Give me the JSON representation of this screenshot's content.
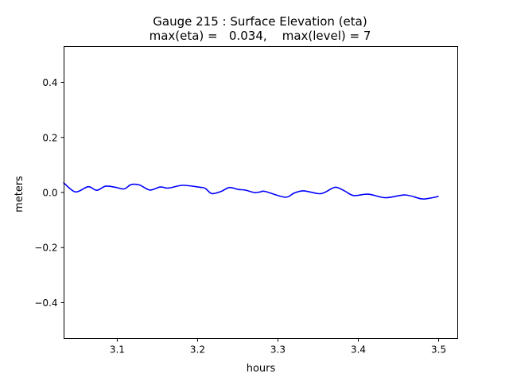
{
  "chart_data": {
    "type": "line",
    "title": "Gauge 215 : Surface Elevation (eta)",
    "subtitle": "max(eta) =   0.034,    max(level) = 7",
    "xlabel": "hours",
    "ylabel": "meters",
    "xlim": [
      3.0338,
      3.5237
    ],
    "ylim": [
      -0.53,
      0.53
    ],
    "xticks": [
      3.1,
      3.2,
      3.3,
      3.4,
      3.5
    ],
    "xtick_labels": [
      "3.1",
      "3.2",
      "3.3",
      "3.4",
      "3.5"
    ],
    "yticks": [
      -0.4,
      -0.2,
      0.0,
      0.2,
      0.4
    ],
    "ytick_labels": [
      "−0.4",
      "−0.2",
      "0.0",
      "0.2",
      "0.4"
    ],
    "grid": false,
    "series": [
      {
        "name": "eta",
        "color": "#0000ff",
        "x": [
          3.0338,
          3.0345,
          3.0483,
          3.0638,
          3.0746,
          3.0855,
          3.0977,
          3.1086,
          3.1175,
          3.128,
          3.1405,
          3.1536,
          3.1635,
          3.1817,
          3.203,
          3.2096,
          3.2178,
          3.2294,
          3.2393,
          3.2508,
          3.259,
          3.2706,
          3.278,
          3.284,
          3.3087,
          3.3202,
          3.3318,
          3.3499,
          3.358,
          3.3713,
          3.3828,
          3.3943,
          3.4124,
          3.4338,
          3.4585,
          3.4783,
          3.4881,
          3.5
        ],
        "y": [
          0.034,
          0.032,
          0.002,
          0.021,
          0.008,
          0.023,
          0.019,
          0.013,
          0.029,
          0.027,
          0.009,
          0.02,
          0.016,
          0.026,
          0.019,
          0.015,
          -0.004,
          0.004,
          0.018,
          0.011,
          0.009,
          0.0,
          0.002,
          0.004,
          -0.017,
          -0.002,
          0.006,
          -0.004,
          0.0,
          0.019,
          0.006,
          -0.011,
          -0.006,
          -0.019,
          -0.009,
          -0.023,
          -0.021,
          -0.014
        ]
      }
    ]
  }
}
